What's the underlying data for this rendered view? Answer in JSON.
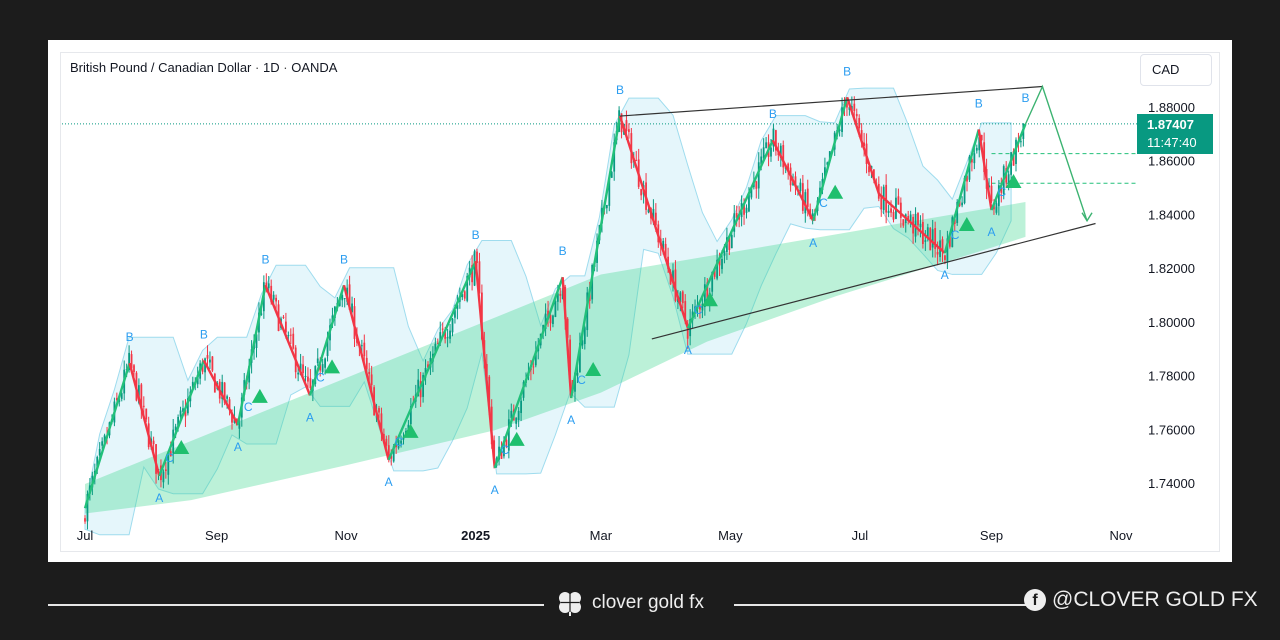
{
  "header": {
    "symbol_name": "British Pound / Canadian Dollar",
    "separator": "·",
    "timeframe": "1D",
    "broker": "OANDA"
  },
  "currency_button": "CAD",
  "last_price": {
    "value": "1.87407",
    "countdown": "11:47:40",
    "color": "#089981"
  },
  "colors": {
    "up": "#089981",
    "down": "#f23645",
    "zigzag_up": "#22c07a",
    "zigzag_down": "#f23645",
    "label": "#2b9df0",
    "marker": "#1fbf6e",
    "channel": "#333333"
  },
  "footer": {
    "brand": "clover gold fx",
    "social_handle": "@CLOVER GOLD FX",
    "social_icon": "facebook-icon",
    "brand_icon": "clover-icon"
  },
  "chart_data": {
    "type": "line",
    "title": "British Pound / Canadian Dollar · 1D · OANDA",
    "xlabel": "",
    "ylabel": "",
    "ylim": [
      1.728,
      1.888
    ],
    "y_ticks": [
      "1.88000",
      "1.86000",
      "1.84000",
      "1.82000",
      "1.80000",
      "1.78000",
      "1.76000",
      "1.74000"
    ],
    "x_ticks": [
      "Jul",
      "Sep",
      "Nov",
      "2025",
      "Mar",
      "May",
      "Jul",
      "Sep",
      "Nov"
    ],
    "x_tick_values": [
      "2024-07-01",
      "2024-09-01",
      "2024-11-01",
      "2025-01-01",
      "2025-03-01",
      "2025-05-01",
      "2025-07-01",
      "2025-09-01",
      "2025-11-01"
    ],
    "grid": false,
    "series": [
      {
        "name": "",
        "x": [
          "2024-07-01",
          "2024-07-22",
          "2024-08-05",
          "2024-08-26",
          "2024-09-11",
          "2024-09-24",
          "2024-10-15",
          "2024-10-31",
          "2024-11-21",
          "2025-01-01",
          "2025-01-10",
          "2025-02-11",
          "2025-02-15",
          "2025-03-10",
          "2025-04-11",
          "2025-05-21",
          "2025-06-09",
          "2025-06-25",
          "2025-07-10",
          "2025-08-10",
          "2025-08-26",
          "2025-09-01",
          "2025-09-17"
        ],
        "y": [
          1.731,
          1.785,
          1.743,
          1.786,
          1.762,
          1.814,
          1.773,
          1.814,
          1.749,
          1.823,
          1.746,
          1.817,
          1.772,
          1.877,
          1.798,
          1.868,
          1.838,
          1.884,
          1.848,
          1.826,
          1.872,
          1.842,
          1.874
        ]
      }
    ],
    "pattern_labels": [
      "A",
      "B",
      "C"
    ],
    "channel": {
      "upper": {
        "x": [
          "2025-03-10",
          "2025-09-25"
        ],
        "y": [
          1.877,
          1.888
        ]
      },
      "lower": {
        "x": [
          "2025-03-25",
          "2025-10-20"
        ],
        "y": [
          1.794,
          1.837
        ]
      }
    },
    "projection": {
      "x": [
        "2025-09-17",
        "2025-09-25",
        "2025-10-16"
      ],
      "y": [
        1.874,
        1.888,
        1.838
      ]
    },
    "levels": [
      1.863,
      1.852
    ]
  }
}
